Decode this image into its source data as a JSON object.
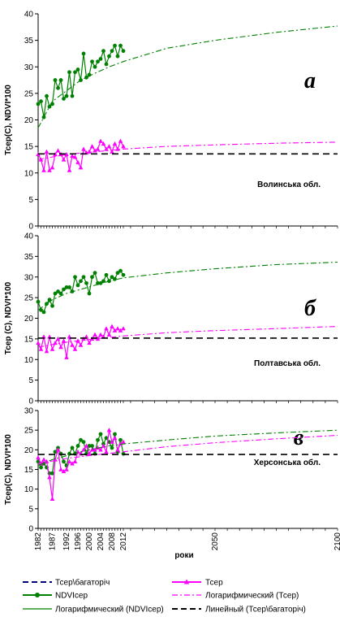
{
  "chart_data": [
    {
      "type": "line",
      "panel_letter": "а",
      "region_label": "Волинська обл.",
      "ylabel": "Тсер(С), NDVI*100",
      "ylim": [
        0,
        40
      ],
      "yticks": [
        "0",
        "5",
        "10",
        "15",
        "20",
        "25",
        "30",
        "35",
        "40"
      ],
      "xlim": [
        1982,
        2100
      ],
      "series": [
        {
          "name": "NDVIсер",
          "type": "line",
          "color": "#008000",
          "x": [
            1982,
            1983,
            1984,
            1985,
            1986,
            1987,
            1988,
            1989,
            1990,
            1991,
            1992,
            1993,
            1994,
            1995,
            1996,
            1997,
            1998,
            1999,
            2000,
            2001,
            2002,
            2003,
            2004,
            2005,
            2006,
            2007,
            2008,
            2009,
            2010,
            2011,
            2012
          ],
          "y": [
            23,
            23.5,
            20.5,
            24.5,
            22.5,
            23,
            27.5,
            26,
            27.5,
            24,
            24.5,
            29,
            24.5,
            29,
            29.5,
            27.5,
            32.5,
            28,
            28.5,
            31,
            30,
            31,
            31.5,
            33,
            30.5,
            32,
            33,
            34,
            32,
            34,
            33
          ]
        },
        {
          "name": "Тсер",
          "type": "line",
          "color": "#ff00ff",
          "x": [
            1982,
            1983,
            1984,
            1985,
            1986,
            1987,
            1988,
            1989,
            1990,
            1991,
            1992,
            1993,
            1994,
            1995,
            1996,
            1997,
            1998,
            1999,
            2000,
            2001,
            2002,
            2003,
            2004,
            2005,
            2006,
            2007,
            2008,
            2009,
            2010,
            2011,
            2012
          ],
          "y": [
            13.5,
            12.5,
            10.5,
            14,
            10.5,
            11,
            13.5,
            14.2,
            13.5,
            12.5,
            13.5,
            10.5,
            13.2,
            13,
            12,
            11,
            14.5,
            13.8,
            14,
            15,
            14.2,
            14.5,
            16,
            15.5,
            14.5,
            15,
            14,
            15.5,
            14.5,
            16,
            15
          ]
        },
        {
          "name": "Логарифмический (NDVIсер)",
          "type": "line",
          "color": "#008000",
          "x": [
            1982,
            1987,
            1992,
            1997,
            2002,
            2007,
            2012,
            2030,
            2050,
            2075,
            2100
          ],
          "y": [
            18.5,
            23.5,
            25.5,
            27.5,
            28.8,
            30,
            31,
            33.5,
            35,
            36.5,
            37.7
          ]
        },
        {
          "name": "Логарифмический (Тсер)",
          "type": "line",
          "color": "#ff00ff",
          "x": [
            1982,
            1992,
            2002,
            2012,
            2030,
            2050,
            2075,
            2100
          ],
          "y": [
            12.5,
            13.5,
            14,
            14.5,
            15,
            15.3,
            15.6,
            15.8
          ]
        },
        {
          "name": "Линейный (Тсер\\багаторіч)",
          "type": "line",
          "color": "#000000",
          "x": [
            1982,
            2100
          ],
          "y": [
            13.6,
            13.6
          ]
        }
      ]
    },
    {
      "type": "line",
      "panel_letter": "б",
      "region_label": "Полтавська обл.",
      "ylabel": "Тсер (С), NDVI*100",
      "ylim": [
        0,
        40
      ],
      "yticks": [
        "0",
        "5",
        "10",
        "15",
        "20",
        "25",
        "30",
        "35",
        "40"
      ],
      "xlim": [
        1982,
        2100
      ],
      "series": [
        {
          "name": "NDVIсер",
          "type": "line",
          "color": "#008000",
          "x": [
            1982,
            1983,
            1984,
            1985,
            1986,
            1987,
            1988,
            1989,
            1990,
            1991,
            1992,
            1993,
            1994,
            1995,
            1996,
            1997,
            1998,
            1999,
            2000,
            2001,
            2002,
            2003,
            2004,
            2005,
            2006,
            2007,
            2008,
            2009,
            2010,
            2011,
            2012
          ],
          "y": [
            24,
            22,
            21.5,
            23.5,
            24.5,
            23,
            26,
            26.5,
            26,
            27,
            27.5,
            27.5,
            26.5,
            30,
            28,
            29,
            30,
            28.5,
            26,
            30,
            31,
            28.5,
            28.5,
            29,
            30.5,
            29,
            30,
            29.5,
            31,
            31.5,
            30.5
          ]
        },
        {
          "name": "Тсер",
          "type": "line",
          "color": "#ff00ff",
          "x": [
            1982,
            1983,
            1984,
            1985,
            1986,
            1987,
            1988,
            1989,
            1990,
            1991,
            1992,
            1993,
            1994,
            1995,
            1996,
            1997,
            1998,
            1999,
            2000,
            2001,
            2002,
            2003,
            2004,
            2005,
            2006,
            2007,
            2008,
            2009,
            2010,
            2011,
            2012
          ],
          "y": [
            14,
            12.5,
            15.5,
            12,
            15.5,
            12.5,
            14,
            15,
            13,
            14.5,
            10.5,
            15.5,
            13.5,
            12.5,
            14.5,
            13.5,
            15,
            15.5,
            14,
            15,
            16,
            15,
            16,
            15.5,
            17.5,
            16,
            18,
            17,
            17.5,
            17,
            17.5
          ]
        },
        {
          "name": "Логарифмический (NDVIсер)",
          "type": "line",
          "color": "#008000",
          "x": [
            1982,
            1987,
            1992,
            1997,
            2002,
            2007,
            2012,
            2030,
            2050,
            2075,
            2100
          ],
          "y": [
            22,
            24.5,
            26,
            27,
            28,
            29,
            29.8,
            31,
            32,
            33,
            33.6
          ]
        },
        {
          "name": "Логарифмический (Тсер)",
          "type": "line",
          "color": "#ff00ff",
          "x": [
            1982,
            1992,
            2002,
            2012,
            2030,
            2050,
            2075,
            2100
          ],
          "y": [
            13,
            14.2,
            15,
            15.7,
            16.5,
            17,
            17.5,
            18
          ]
        },
        {
          "name": "Линейный (Тсер\\багаторіч)",
          "type": "line",
          "color": "#000000",
          "x": [
            1982,
            2100
          ],
          "y": [
            15.2,
            15.2
          ]
        }
      ]
    },
    {
      "type": "line",
      "panel_letter": "в",
      "region_label": "Херсонська обл.",
      "ylabel": "Тсер(С), NDVI*100",
      "ylim": [
        0,
        30
      ],
      "yticks": [
        "0",
        "5",
        "10",
        "15",
        "20",
        "25",
        "30"
      ],
      "xlim": [
        1982,
        2100
      ],
      "xticks": [
        "1982",
        "1987",
        "1992",
        "1996",
        "2000",
        "2004",
        "2008",
        "2012",
        "2050",
        "2100"
      ],
      "xlabel": "роки",
      "series": [
        {
          "name": "NDVIсер",
          "type": "line",
          "color": "#008000",
          "x": [
            1982,
            1983,
            1984,
            1985,
            1986,
            1987,
            1988,
            1989,
            1990,
            1991,
            1992,
            1993,
            1994,
            1995,
            1996,
            1997,
            1998,
            1999,
            2000,
            2001,
            2002,
            2003,
            2004,
            2005,
            2006,
            2007,
            2008,
            2009,
            2010,
            2011,
            2012
          ],
          "y": [
            17,
            15.5,
            16.5,
            15.5,
            14,
            14,
            19.5,
            20.5,
            19,
            17,
            16,
            19,
            20.5,
            19,
            21,
            22.5,
            22,
            19,
            21,
            21,
            19,
            22.5,
            24,
            21.5,
            23,
            22,
            20.5,
            24,
            19.5,
            22.5,
            19
          ]
        },
        {
          "name": "Тсер",
          "type": "line",
          "color": "#ff00ff",
          "x": [
            1982,
            1983,
            1984,
            1985,
            1986,
            1987,
            1988,
            1989,
            1990,
            1991,
            1992,
            1993,
            1994,
            1995,
            1996,
            1997,
            1998,
            1999,
            2000,
            2001,
            2002,
            2003,
            2004,
            2005,
            2006,
            2007,
            2008,
            2009,
            2010,
            2011,
            2012
          ],
          "y": [
            18,
            16.5,
            17.5,
            17,
            13,
            7.5,
            17.5,
            20,
            15,
            14.5,
            15,
            17,
            16.5,
            17,
            19.5,
            19,
            20,
            21,
            19,
            20,
            20,
            20.5,
            20,
            21,
            19.5,
            25,
            22,
            23,
            20,
            21.5,
            22
          ]
        },
        {
          "name": "Логарифмический (NDVIсер)",
          "type": "line",
          "color": "#008000",
          "x": [
            1982,
            1987,
            1992,
            1997,
            2002,
            2007,
            2012,
            2030,
            2050,
            2075,
            2100
          ],
          "y": [
            16,
            17.5,
            18.5,
            19.5,
            20.3,
            21,
            21.5,
            22.5,
            23.5,
            24.3,
            25
          ]
        },
        {
          "name": "Логарифмический (Тсер)",
          "type": "line",
          "color": "#ff00ff",
          "x": [
            1982,
            1992,
            2002,
            2012,
            2030,
            2050,
            2075,
            2100
          ],
          "y": [
            16.5,
            17.8,
            18.7,
            19.5,
            20.8,
            21.8,
            22.8,
            23.7
          ]
        },
        {
          "name": "Линейный (Тсер\\багаторіч)",
          "type": "line",
          "color": "#000000",
          "x": [
            1982,
            2100
          ],
          "y": [
            18.8,
            18.8
          ]
        }
      ]
    }
  ],
  "legend": [
    {
      "label": "Тсер\\багаторіч",
      "color": "#000080",
      "style": "dash"
    },
    {
      "label": "Тсер",
      "color": "#ff00ff",
      "style": "triangle"
    },
    {
      "label": "NDVIсер",
      "color": "#008000",
      "style": "circle"
    },
    {
      "label": "Логарифмический (Тсер)",
      "color": "#ff00ff",
      "style": "dashdot"
    },
    {
      "label": "Логарифмический (NDVIсер)",
      "color": "#008000",
      "style": "solid"
    },
    {
      "label": "Линейный (Тсер\\багаторіч)",
      "color": "#000000",
      "style": "dash"
    }
  ]
}
